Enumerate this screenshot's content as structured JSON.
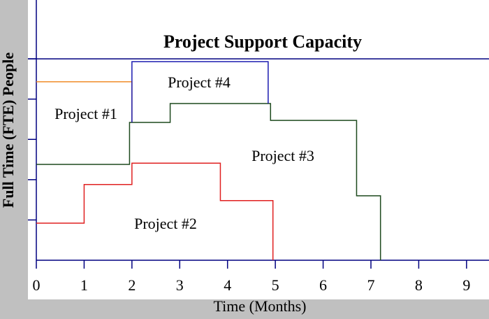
{
  "chart_data": {
    "type": "line",
    "title": "Project Support Capacity",
    "x_label": "Time (Months)",
    "y_label": "Full Time (FTE) People",
    "xlim": [
      0,
      9.47
    ],
    "xticks": [
      0,
      1,
      2,
      3,
      4,
      5,
      6,
      7,
      8,
      9
    ],
    "ylim": [
      0,
      6.46
    ],
    "yticks": [
      1,
      2,
      3,
      4,
      5
    ],
    "reference_line": {
      "value": 5,
      "color": "#000080"
    },
    "series": [
      {
        "name": "Project #1",
        "color": "#f08c28",
        "x": [
          0,
          2,
          2
        ],
        "values": [
          4.43,
          4.43,
          3.42
        ]
      },
      {
        "name": "Project #2",
        "color": "#e02020",
        "x": [
          0,
          1,
          1,
          2,
          2,
          3.85,
          3.85,
          4.95,
          4.95
        ],
        "values": [
          0.92,
          0.92,
          1.88,
          1.88,
          2.41,
          2.41,
          1.48,
          1.48,
          0
        ]
      },
      {
        "name": "Project #3",
        "color": "#1e4a1e",
        "x": [
          0,
          1.95,
          1.95,
          2.8,
          2.8,
          4.9,
          4.9,
          6.7,
          6.7,
          7.2,
          7.2
        ],
        "values": [
          2.38,
          2.38,
          3.42,
          3.42,
          3.89,
          3.89,
          3.47,
          3.47,
          1.6,
          1.6,
          0
        ]
      },
      {
        "name": "Project #4",
        "color": "#1a1ab0",
        "x": [
          2,
          2,
          4.85,
          4.85
        ],
        "values": [
          3.42,
          4.93,
          4.93,
          3.89
        ]
      }
    ]
  }
}
